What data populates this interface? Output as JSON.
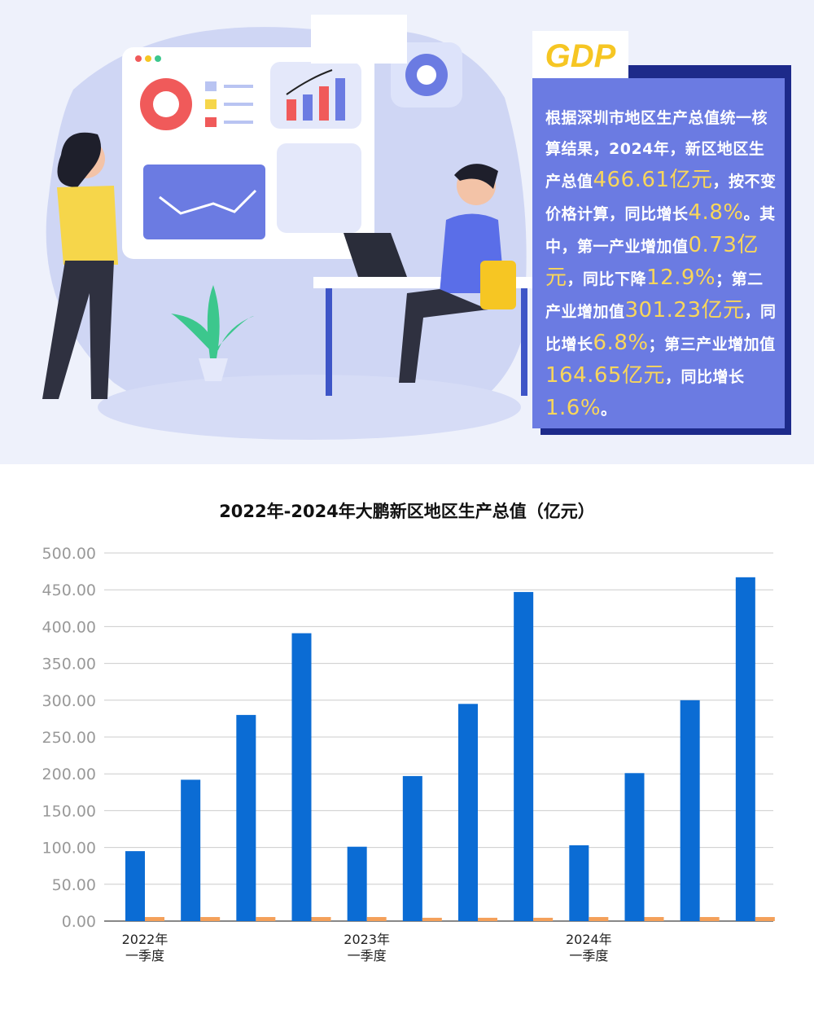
{
  "hero": {
    "tag": "GDP",
    "paragraph": [
      {
        "text": "根据深圳市地区生产总值统一核算结果，2024年，新区地区生产总值",
        "highlight": false
      },
      {
        "text": "466.61亿元",
        "highlight": true
      },
      {
        "text": "，按不变价格计算，同比增长",
        "highlight": false
      },
      {
        "text": "4.8%",
        "highlight": true
      },
      {
        "text": "。其中，第一产业增加值",
        "highlight": false
      },
      {
        "text": "0.73亿元",
        "highlight": true
      },
      {
        "text": "，同比下降",
        "highlight": false
      },
      {
        "text": "12.9%",
        "highlight": true
      },
      {
        "text": "；第二产业增加值",
        "highlight": false
      },
      {
        "text": "301.23亿元",
        "highlight": true
      },
      {
        "text": "，同比增长",
        "highlight": false
      },
      {
        "text": "6.8%",
        "highlight": true
      },
      {
        "text": "；第三产业增加值",
        "highlight": false
      },
      {
        "text": "164.65亿元",
        "highlight": true
      },
      {
        "text": "，同比增长",
        "highlight": false
      },
      {
        "text": "1.6%",
        "highlight": true
      },
      {
        "text": "。",
        "highlight": false
      }
    ],
    "colors": {
      "box": "#6b7be2",
      "highlight": "#f9d65a",
      "tag_text": "#f6c623"
    }
  },
  "chart_data": {
    "type": "bar",
    "title": "2022年-2024年大鹏新区地区生产总值（亿元）",
    "categories": [
      "2022年一季度",
      "",
      "",
      "",
      "2023年一季度",
      "",
      "",
      "",
      "2024年一季度",
      "",
      "",
      ""
    ],
    "x_tick_labels": [
      [
        "2022年",
        "一季度"
      ],
      [
        "2023年",
        "一季度"
      ],
      [
        "2024年",
        "一季度"
      ]
    ],
    "x_tick_label_categories": [
      0,
      4,
      8
    ],
    "series": [
      {
        "values": [
          95,
          192,
          280,
          391,
          101,
          197,
          295,
          447,
          103,
          201,
          300,
          467
        ],
        "color": "#0b6cd4"
      },
      {
        "values": [
          5.5,
          5.5,
          5.5,
          5.5,
          5.5,
          4.5,
          4.5,
          4.5,
          5.5,
          5.5,
          5.5,
          5.5
        ],
        "color": "#f4a05a"
      }
    ],
    "ylim": [
      0,
      500
    ],
    "yticks": [
      "0.00",
      "50.00",
      "100.00",
      "150.00",
      "200.00",
      "250.00",
      "300.00",
      "350.00",
      "400.00",
      "450.00",
      "500.00"
    ],
    "grid": true,
    "legend": "none"
  }
}
